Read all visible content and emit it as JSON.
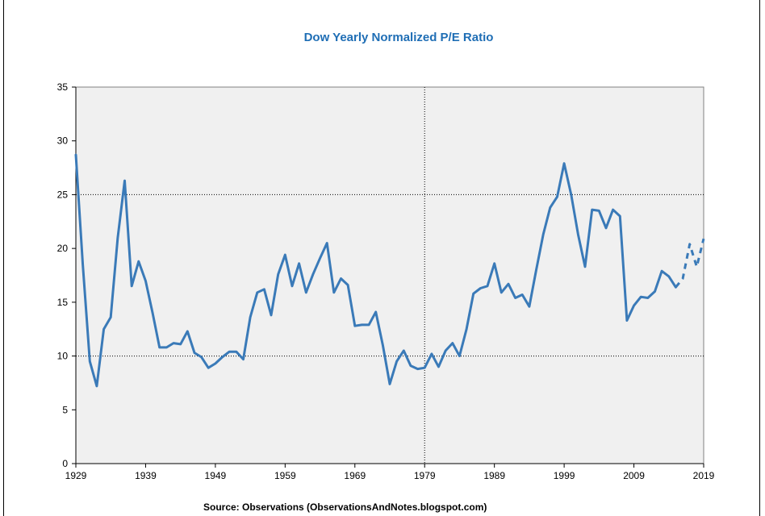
{
  "chart_data": {
    "type": "line",
    "title": "Dow Yearly Normalized P/E Ratio",
    "source": "Source: Observations (ObservationsAndNotes.blogspot.com)",
    "xlim": [
      1929,
      2019
    ],
    "ylim": [
      0,
      35
    ],
    "x_ticks": [
      1929,
      1939,
      1949,
      1959,
      1969,
      1979,
      1989,
      1999,
      2009,
      2019
    ],
    "y_ticks": [
      0,
      5,
      10,
      15,
      20,
      25,
      30,
      35
    ],
    "gridlines": {
      "horizontal": [
        10,
        25
      ],
      "vertical": [
        1979
      ],
      "style": "dotted"
    },
    "plot_background": "#f0f0f0",
    "series": [
      {
        "style": "solid",
        "color": "#3a7ab8",
        "x": [
          1929,
          1930,
          1931,
          1932,
          1933,
          1934,
          1935,
          1936,
          1937,
          1938,
          1939,
          1940,
          1941,
          1942,
          1943,
          1944,
          1945,
          1946,
          1947,
          1948,
          1949,
          1950,
          1951,
          1952,
          1953,
          1954,
          1955,
          1956,
          1957,
          1958,
          1959,
          1960,
          1961,
          1962,
          1963,
          1964,
          1965,
          1966,
          1967,
          1968,
          1969,
          1970,
          1971,
          1972,
          1973,
          1974,
          1975,
          1976,
          1977,
          1978,
          1979,
          1980,
          1981,
          1982,
          1983,
          1984,
          1985,
          1986,
          1987,
          1988,
          1989,
          1990,
          1991,
          1992,
          1993,
          1994,
          1995,
          1996,
          1997,
          1998,
          1999,
          2000,
          2001,
          2002,
          2003,
          2004,
          2005,
          2006,
          2007,
          2008,
          2009,
          2010,
          2011,
          2012,
          2013,
          2014,
          2015
        ],
        "y": [
          28.7,
          18.5,
          9.5,
          7.2,
          12.5,
          13.6,
          21.0,
          26.3,
          16.5,
          18.8,
          17.0,
          14.0,
          10.8,
          10.8,
          11.2,
          11.1,
          12.3,
          10.3,
          9.9,
          8.9,
          9.3,
          9.9,
          10.4,
          10.4,
          9.7,
          13.6,
          15.9,
          16.2,
          13.8,
          17.6,
          19.4,
          16.5,
          18.6,
          15.9,
          17.6,
          19.1,
          20.5,
          15.9,
          17.2,
          16.6,
          12.8,
          12.9,
          12.9,
          14.1,
          11.0,
          7.4,
          9.5,
          10.5,
          9.1,
          8.8,
          8.9,
          10.2,
          9.0,
          10.5,
          11.2,
          10.0,
          12.5,
          15.8,
          16.3,
          16.5,
          18.6,
          15.9,
          16.7,
          15.4,
          15.7,
          14.6,
          18.0,
          21.3,
          23.8,
          24.8,
          27.9,
          25.0,
          21.3,
          18.3,
          23.6,
          23.5,
          21.9,
          23.6,
          23.0,
          13.3,
          14.7,
          15.5,
          15.4,
          16.0,
          17.9,
          17.4,
          16.4
        ]
      },
      {
        "style": "dashed",
        "color": "#3a7ab8",
        "x": [
          2015,
          2016,
          2017,
          2018,
          2019
        ],
        "y": [
          16.4,
          17.2,
          20.4,
          18.3,
          20.9
        ]
      }
    ]
  }
}
